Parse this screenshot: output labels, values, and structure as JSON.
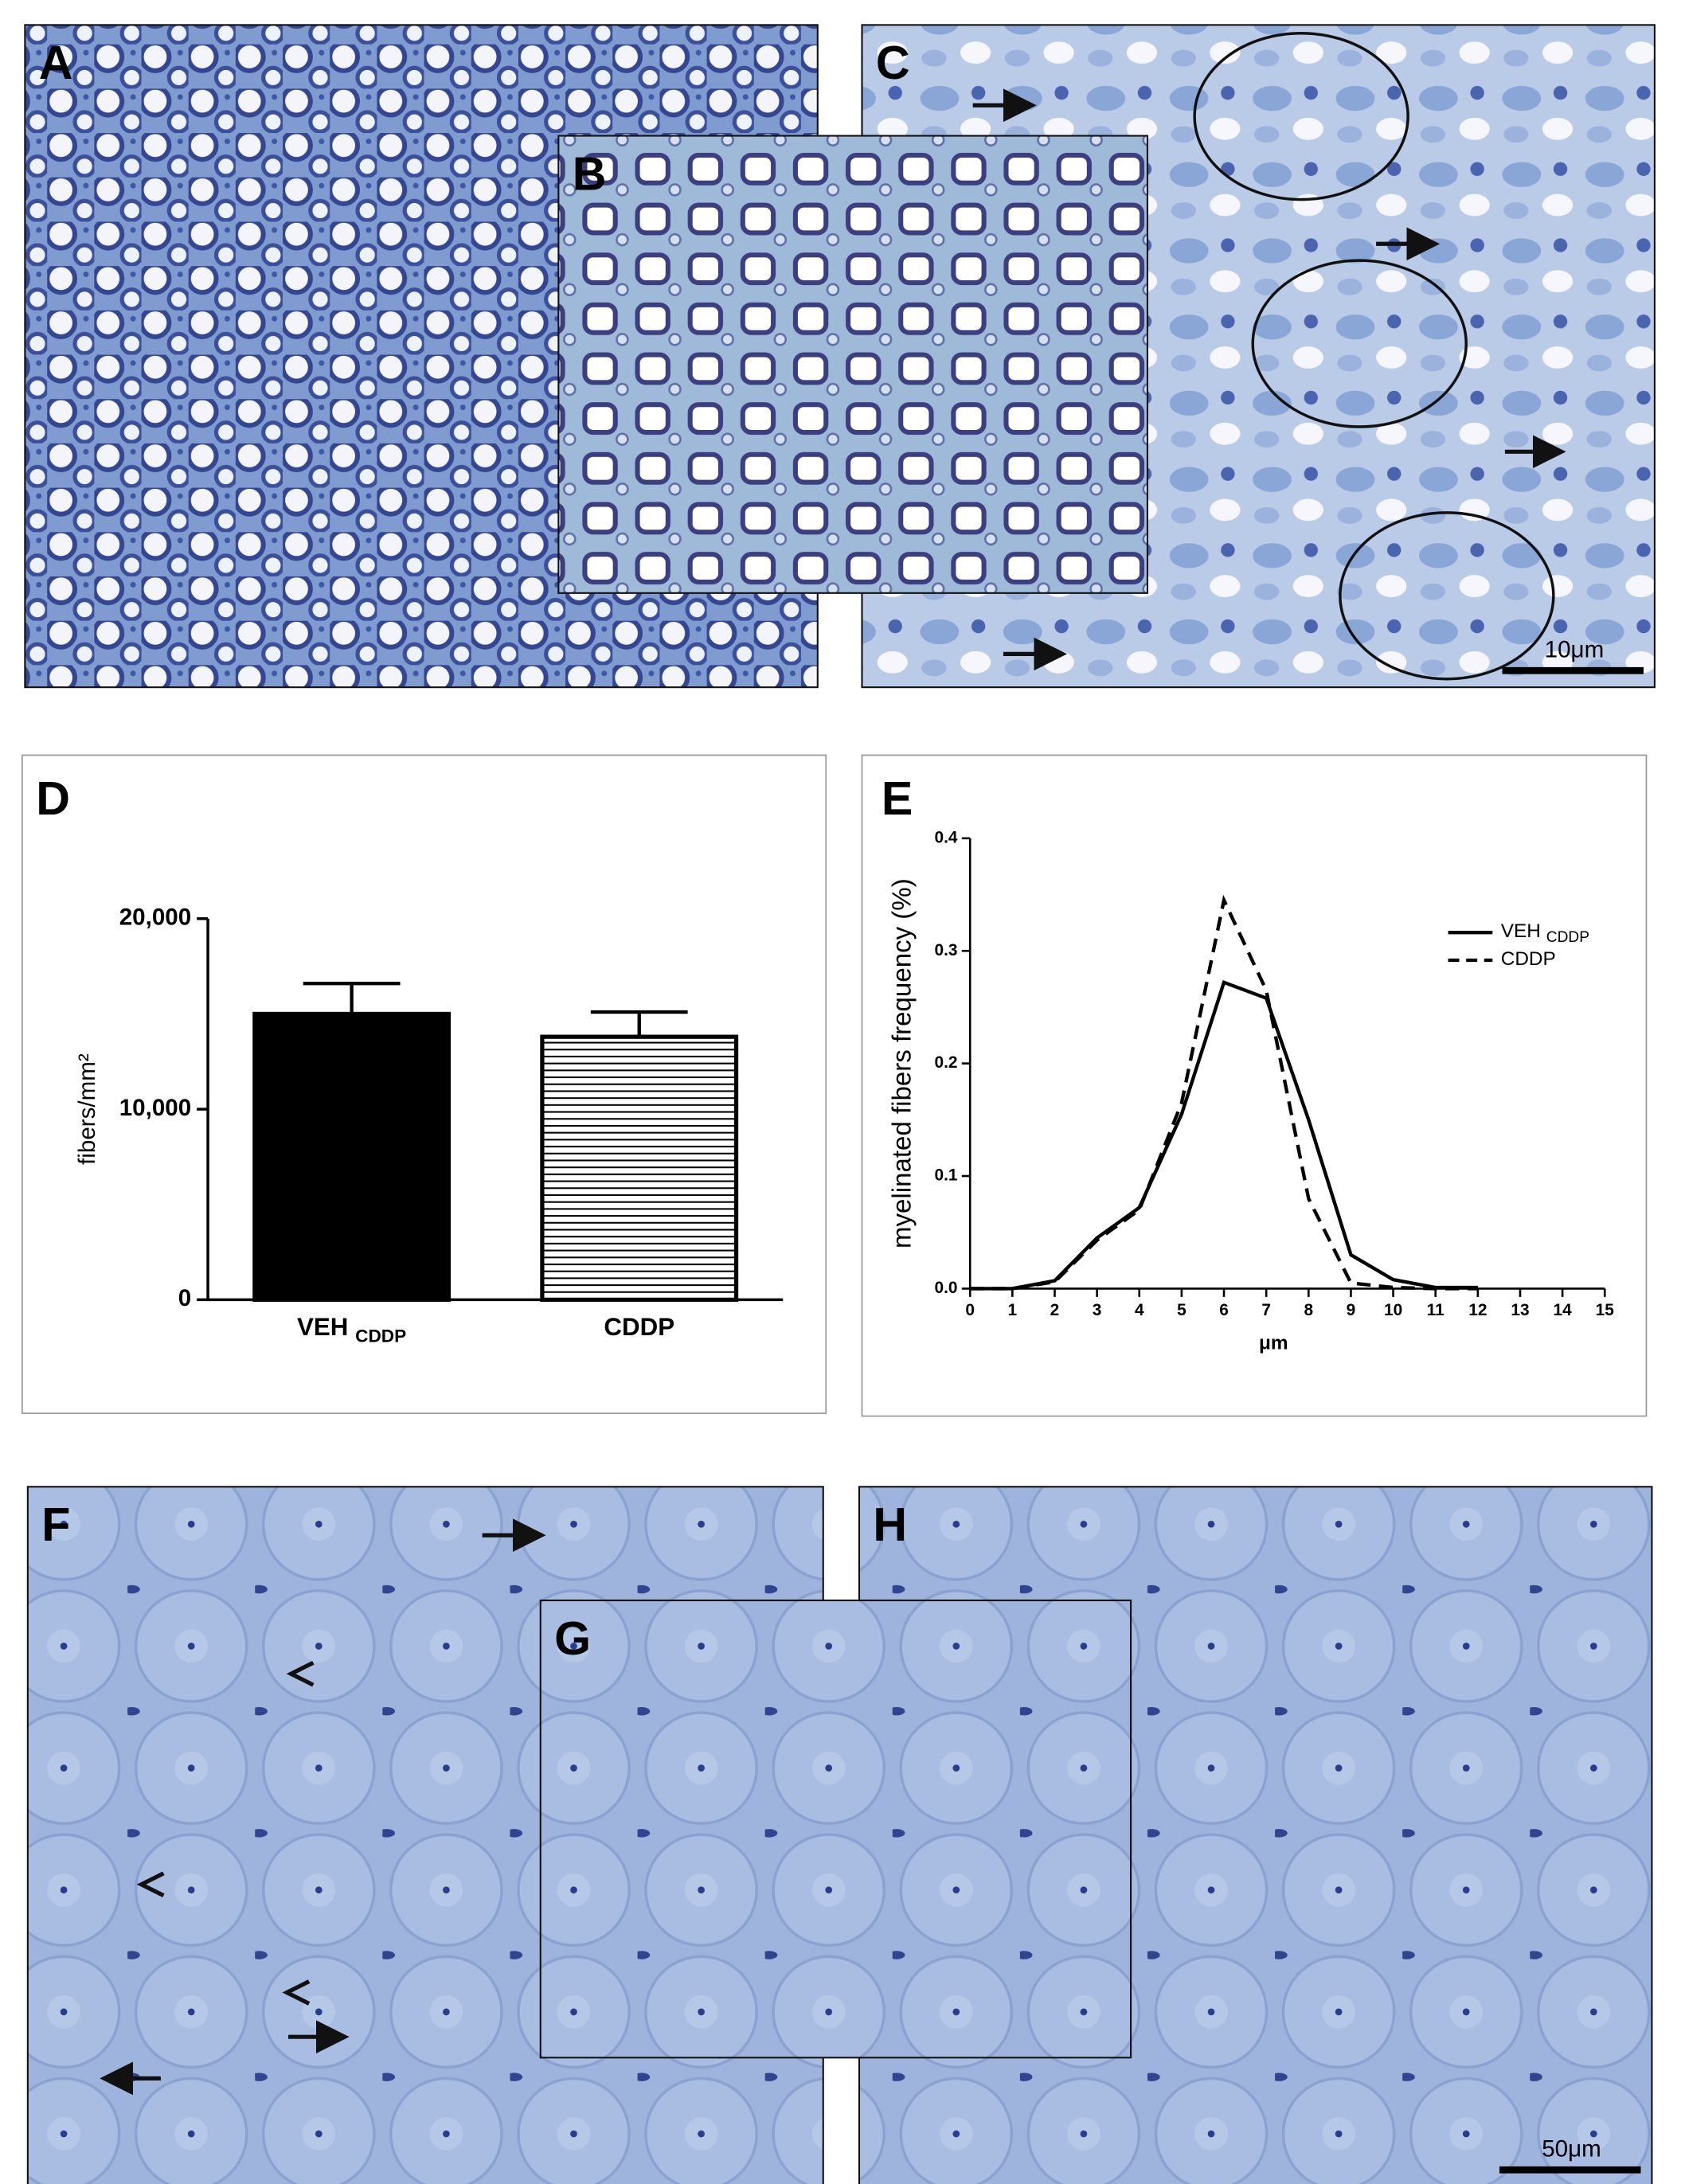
{
  "panels": [
    {
      "label": "A"
    },
    {
      "label": "B"
    },
    {
      "label": "C",
      "scale_bar": "10μm"
    },
    {
      "label": "F"
    },
    {
      "label": "G"
    },
    {
      "label": "H",
      "scale_bar": "50μm"
    }
  ],
  "chart_data": [
    {
      "panel": "D",
      "type": "bar",
      "ylabel": "fibers/mm²",
      "categories": [
        "VEH",
        "CDDP"
      ],
      "category_subscripts": [
        "CDDP",
        null
      ],
      "values": [
        15000,
        13800
      ],
      "errors": [
        1600,
        1300
      ],
      "colors": [
        "#000000",
        "#ffffff"
      ],
      "hatch": [
        false,
        true
      ],
      "ylim": [
        0,
        20000
      ],
      "yticks": [
        0,
        {
          "value": 10000,
          "label": "10,000"
        },
        {
          "value": 20000,
          "label": "20,000"
        }
      ]
    },
    {
      "panel": "E",
      "type": "line",
      "ylabel": "myelinated fibers frequency (%)",
      "xlabel": "μm",
      "x": [
        0,
        1,
        2,
        3,
        4,
        5,
        6,
        7,
        8,
        9,
        10,
        11,
        12
      ],
      "series": [
        {
          "name": "VEH",
          "name_subscript": "CDDP",
          "color": "#000000",
          "dashed": false,
          "values": [
            0,
            0,
            0.007,
            0.045,
            0.072,
            0.155,
            0.272,
            0.258,
            0.15,
            0.03,
            0.008,
            0.001,
            0.001
          ]
        },
        {
          "name": "CDDP",
          "color": "#000000",
          "dashed": true,
          "values": [
            0,
            0,
            0.006,
            0.043,
            0.07,
            0.165,
            0.345,
            0.265,
            0.08,
            0.005,
            0.001,
            0,
            0
          ]
        }
      ],
      "xlim": [
        0,
        15
      ],
      "xticks": [
        0,
        1,
        2,
        3,
        4,
        5,
        6,
        7,
        8,
        9,
        10,
        11,
        12,
        13,
        14,
        15
      ],
      "ylim": [
        0,
        0.4
      ],
      "yticks": [
        {
          "value": 0,
          "label": "0.0"
        },
        0.1,
        0.2,
        0.3,
        0.4
      ],
      "legend": "upper right"
    }
  ]
}
